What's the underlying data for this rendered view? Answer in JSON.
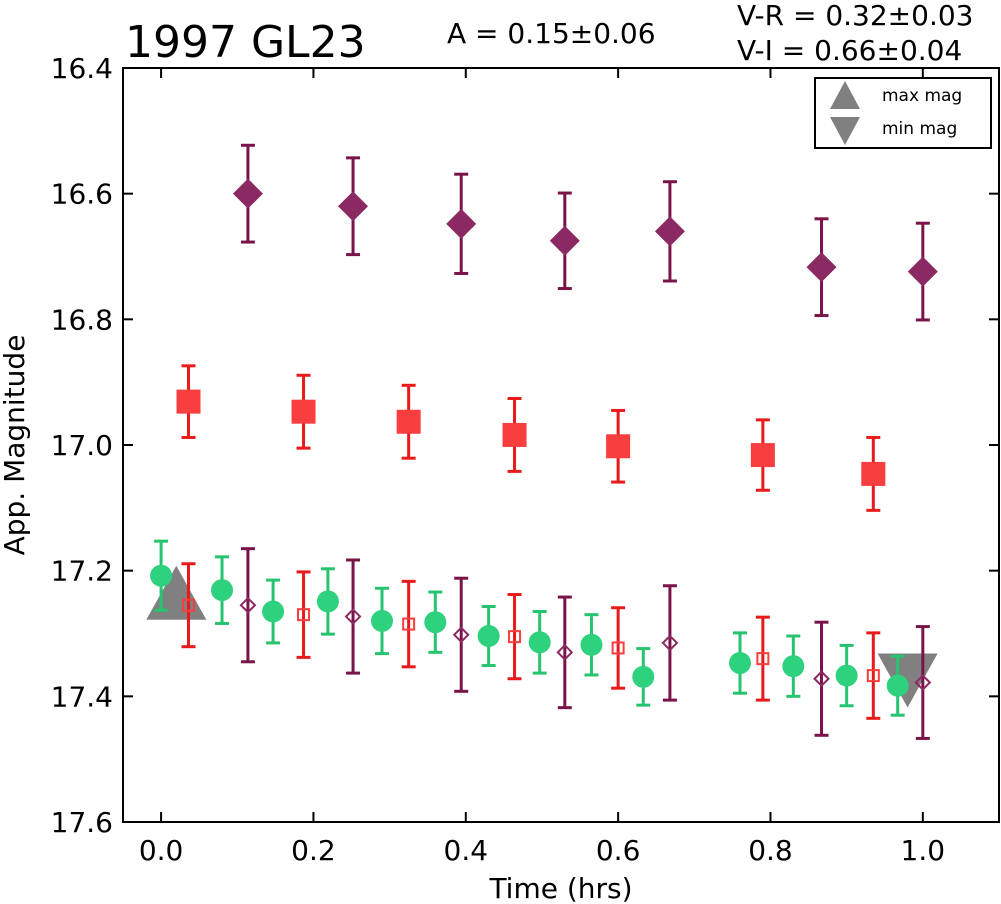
{
  "chart_data": {
    "type": "scatter",
    "title": "1997 GL23",
    "annotations": {
      "amplitude": "A  = 0.15±0.06",
      "vr": "V-R = 0.32±0.03",
      "vi": "V-I  = 0.66±0.04"
    },
    "xlabel": "Time (hrs)",
    "ylabel": "App. Magnitude",
    "xlim": [
      -0.05,
      1.1
    ],
    "ylim": [
      17.6,
      16.4
    ],
    "y_inverted": true,
    "xticks": [
      0.0,
      0.2,
      0.4,
      0.6,
      0.8,
      1.0
    ],
    "xtick_labels": [
      "0.0",
      "0.2",
      "0.4",
      "0.6",
      "0.8",
      "1.0"
    ],
    "yticks": [
      16.4,
      16.6,
      16.8,
      17.0,
      17.2,
      17.4,
      17.6
    ],
    "ytick_labels": [
      "16.4",
      "16.6",
      "16.8",
      "17.0",
      "17.2",
      "17.4",
      "17.6"
    ],
    "grid": false,
    "legend": {
      "placement": "top-right",
      "entries": [
        {
          "label": "max mag",
          "marker": "triangle-up",
          "color": "#808080"
        },
        {
          "label": "min mag",
          "marker": "triangle-down",
          "color": "#808080"
        }
      ]
    },
    "extrema": [
      {
        "kind": "max",
        "x": 0.02,
        "y": 17.24,
        "color": "#808080"
      },
      {
        "kind": "min",
        "x": 0.98,
        "y": 17.37,
        "color": "#808080"
      }
    ],
    "series": [
      {
        "marker": "diamond",
        "color": "#8b2a62",
        "bar_color": "#7a1448",
        "x": [
          0.114,
          0.252,
          0.394,
          0.53,
          0.668,
          0.867,
          1.0
        ],
        "y": [
          16.6,
          16.62,
          16.648,
          16.675,
          16.66,
          16.717,
          16.724
        ],
        "err": [
          0.077,
          0.077,
          0.079,
          0.076,
          0.079,
          0.077,
          0.077
        ]
      },
      {
        "marker": "square",
        "color": "#f83e3e",
        "bar_color": "#e81a1a",
        "x": [
          0.036,
          0.187,
          0.325,
          0.464,
          0.6,
          0.79,
          0.935
        ],
        "y": [
          16.931,
          16.947,
          16.963,
          16.984,
          17.002,
          17.016,
          17.046
        ],
        "err": [
          0.057,
          0.058,
          0.058,
          0.058,
          0.057,
          0.056,
          0.058
        ]
      },
      {
        "marker": "circle",
        "color": "#2ed17e",
        "bar_color": "#27c46f",
        "x": [
          0.0,
          0.08,
          0.147,
          0.219,
          0.29,
          0.36,
          0.43,
          0.497,
          0.565,
          0.633,
          0.76,
          0.83,
          0.9,
          0.967
        ],
        "y": [
          17.208,
          17.231,
          17.265,
          17.249,
          17.28,
          17.282,
          17.304,
          17.314,
          17.318,
          17.369,
          17.347,
          17.352,
          17.367,
          17.383
        ],
        "err": [
          0.055,
          0.053,
          0.05,
          0.052,
          0.052,
          0.048,
          0.047,
          0.049,
          0.048,
          0.045,
          0.048,
          0.048,
          0.048,
          0.047
        ]
      },
      {
        "marker": "open-square",
        "color": "#f83e3e",
        "bar_color": "#e81a1a",
        "x": [
          0.036,
          0.187,
          0.325,
          0.464,
          0.6,
          0.79,
          0.935
        ],
        "y": [
          17.255,
          17.27,
          17.285,
          17.305,
          17.323,
          17.34,
          17.367
        ],
        "err": [
          0.066,
          0.068,
          0.068,
          0.067,
          0.064,
          0.066,
          0.068
        ]
      },
      {
        "marker": "open-diamond",
        "color": "#8b2a62",
        "bar_color": "#7a1448",
        "x": [
          0.114,
          0.252,
          0.394,
          0.53,
          0.668,
          0.867,
          1.0
        ],
        "y": [
          17.255,
          17.273,
          17.302,
          17.33,
          17.315,
          17.372,
          17.378
        ],
        "err": [
          0.09,
          0.09,
          0.09,
          0.088,
          0.091,
          0.09,
          0.089
        ]
      }
    ]
  }
}
